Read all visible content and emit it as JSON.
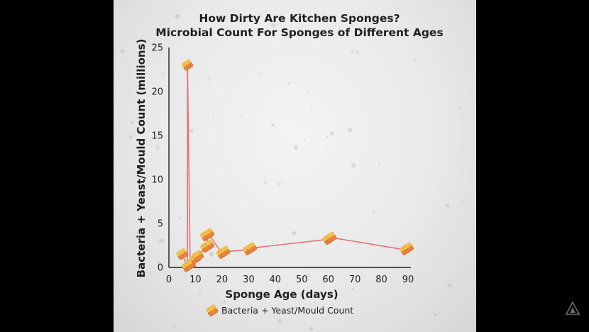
{
  "chart_data": {
    "type": "line",
    "title_lines": [
      "How Dirty Are Kitchen Sponges?",
      "Microbial Count For Sponges of Different Ages"
    ],
    "xlabel": "Sponge Age (days)",
    "ylabel": "Bacteria + Yeast/Mould Count (millions)",
    "xlim": [
      0,
      90
    ],
    "ylim": [
      0,
      25
    ],
    "x_ticks": [
      0,
      10,
      20,
      30,
      40,
      50,
      60,
      70,
      80,
      90
    ],
    "y_ticks": [
      0,
      5,
      10,
      15,
      20,
      25
    ],
    "legend_position": "bottom",
    "series": [
      {
        "name": "Bacteria + Yeast/Mould Count",
        "color": "#e8707a",
        "marker": "sponge-icon",
        "points": [
          {
            "x": 5,
            "y": 1.5
          },
          {
            "x": 7,
            "y": 0.1
          },
          {
            "x": 7,
            "y": 23
          },
          {
            "x": 8,
            "y": 0.3
          },
          {
            "x": 10,
            "y": 1.0
          },
          {
            "x": 11,
            "y": 1.3
          },
          {
            "x": 14,
            "y": 2.3
          },
          {
            "x": 15,
            "y": 2.5
          },
          {
            "x": 14,
            "y": 3.6
          },
          {
            "x": 15,
            "y": 3.8
          },
          {
            "x": 20,
            "y": 1.6
          },
          {
            "x": 21,
            "y": 1.8
          },
          {
            "x": 30,
            "y": 2.0
          },
          {
            "x": 31,
            "y": 2.2
          },
          {
            "x": 60,
            "y": 3.2
          },
          {
            "x": 61,
            "y": 3.4
          },
          {
            "x": 89,
            "y": 2.0
          },
          {
            "x": 90,
            "y": 2.2
          }
        ]
      }
    ]
  }
}
